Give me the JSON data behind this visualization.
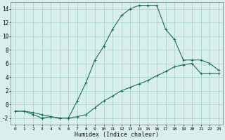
{
  "xlabel": "Humidex (Indice chaleur)",
  "background_color": "#d8efec",
  "grid_color": "#aad4ce",
  "line_color": "#1a6b5a",
  "x_vals": [
    0,
    1,
    2,
    3,
    4,
    5,
    6,
    7,
    8,
    9,
    10,
    11,
    12,
    13,
    14,
    15,
    16,
    17,
    18,
    19,
    20,
    21,
    22,
    23
  ],
  "y_line1": [
    -1,
    -1,
    -1.5,
    -2,
    -1.8,
    -2,
    -2,
    0.5,
    3.2,
    6.5,
    8.5,
    11,
    13,
    14,
    14.5,
    14.5,
    14.5,
    11,
    9.5,
    6.5,
    6.5,
    6.5,
    6,
    5
  ],
  "y_line2": [
    -1,
    -1,
    -1.2,
    -1.5,
    -1.8,
    -2,
    -2,
    -1.8,
    -1.5,
    -0.5,
    0.5,
    1.2,
    2.0,
    2.5,
    3.0,
    3.5,
    4.2,
    4.8,
    5.5,
    5.8,
    6.0,
    4.5,
    4.5,
    4.5
  ],
  "ylim": [
    -3,
    15
  ],
  "xlim": [
    -0.5,
    23.5
  ],
  "yticks": [
    -2,
    0,
    2,
    4,
    6,
    8,
    10,
    12,
    14
  ],
  "xticks": [
    0,
    1,
    2,
    3,
    4,
    5,
    6,
    7,
    8,
    9,
    10,
    11,
    12,
    13,
    14,
    15,
    16,
    17,
    18,
    19,
    20,
    21,
    22,
    23
  ],
  "xtick_labels": [
    "0",
    "1",
    "2",
    "3",
    "4",
    "5",
    "6",
    "7",
    "8",
    "9",
    "10",
    "11",
    "12",
    "13",
    "14",
    "15",
    "16",
    "17",
    "18",
    "19",
    "20",
    "21",
    "22",
    "23"
  ],
  "figsize": [
    3.2,
    2.0
  ],
  "dpi": 100
}
